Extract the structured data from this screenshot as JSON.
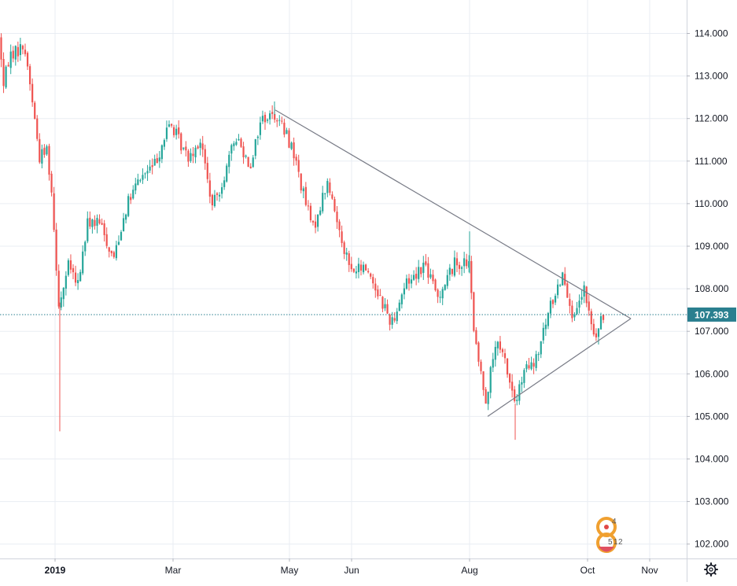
{
  "chart_data": {
    "type": "candlestick",
    "title": "",
    "ylim": [
      101.5,
      114.9
    ],
    "y_ticks": [
      "114.000",
      "113.000",
      "112.000",
      "111.000",
      "110.000",
      "109.000",
      "108.000",
      "107.000",
      "106.000",
      "105.000",
      "104.000",
      "103.000",
      "102.000"
    ],
    "x_ticks": [
      {
        "label": "2019",
        "bold": true
      },
      {
        "label": "Mar",
        "bold": false
      },
      {
        "label": "May",
        "bold": false
      },
      {
        "label": "Jun",
        "bold": false
      },
      {
        "label": "Aug",
        "bold": false
      },
      {
        "label": "Oct",
        "bold": false
      },
      {
        "label": "Nov",
        "bold": false
      }
    ],
    "last_price": "107.393",
    "grid": true,
    "colors": {
      "up": "#26a69a",
      "down": "#ef5350",
      "grid": "#e9edf3",
      "trendline": "#787b86",
      "price_line": "#2a7f8f"
    },
    "settings_icon": "gear-icon",
    "path": [
      [
        113.9,
        0
      ],
      [
        112.7,
        4
      ],
      [
        113.5,
        12
      ],
      [
        113.7,
        31
      ],
      [
        112.6,
        40
      ],
      [
        111.1,
        50
      ],
      [
        111.3,
        60
      ],
      [
        110.2,
        66
      ],
      [
        107.6,
        75
      ],
      [
        108.6,
        88
      ],
      [
        108.0,
        98
      ],
      [
        109.6,
        112
      ],
      [
        109.5,
        128
      ],
      [
        108.7,
        144
      ],
      [
        109.9,
        160
      ],
      [
        110.6,
        178
      ],
      [
        110.9,
        196
      ],
      [
        111.9,
        216
      ],
      [
        111.1,
        238
      ],
      [
        111.5,
        255
      ],
      [
        109.9,
        270
      ],
      [
        110.7,
        286
      ],
      [
        111.6,
        300
      ],
      [
        110.9,
        318
      ],
      [
        112.0,
        332
      ],
      [
        112.1,
        351
      ],
      [
        111.3,
        372
      ],
      [
        110.2,
        386
      ],
      [
        109.4,
        398
      ],
      [
        110.5,
        416
      ],
      [
        109.5,
        430
      ],
      [
        108.4,
        446
      ],
      [
        108.5,
        466
      ],
      [
        107.2,
        498
      ],
      [
        108.1,
        515
      ],
      [
        108.6,
        540
      ],
      [
        107.8,
        556
      ],
      [
        108.6,
        578
      ],
      [
        108.6,
        596
      ],
      [
        106.7,
        604
      ],
      [
        105.4,
        618
      ],
      [
        106.7,
        630
      ],
      [
        106.3,
        642
      ],
      [
        105.3,
        655
      ],
      [
        106.1,
        668
      ],
      [
        106.2,
        680
      ],
      [
        107.6,
        700
      ],
      [
        108.4,
        716
      ],
      [
        107.2,
        730
      ],
      [
        108.0,
        742
      ],
      [
        106.8,
        756
      ],
      [
        107.4,
        768
      ]
    ],
    "spikes": [
      [
        76,
        104.65
      ],
      [
        655,
        104.45
      ],
      [
        597,
        109.35
      ],
      [
        349,
        112.4
      ]
    ],
    "trendlines": [
      {
        "from": [
          350,
          112.2
        ],
        "to": [
          802,
          107.3
        ]
      },
      {
        "from": [
          620,
          105.0
        ],
        "to": [
          802,
          107.3
        ]
      }
    ]
  },
  "watermark": {
    "digits": [
      "4",
      "5",
      "1",
      "2"
    ]
  }
}
